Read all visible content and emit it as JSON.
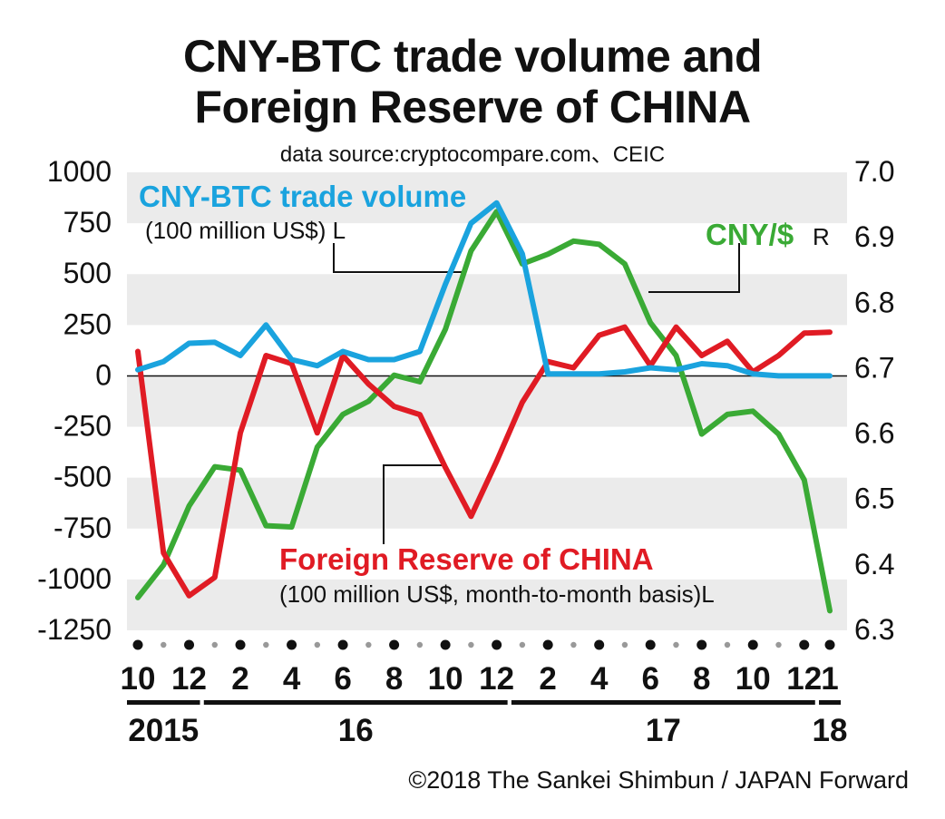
{
  "title_line1": "CNY-BTC trade volume and",
  "title_line2": "Foreign Reserve of CHINA",
  "source": "data source:cryptocompare.com、CEIC",
  "copyright": "©2018 The Sankei Shimbun / JAPAN Forward",
  "colors": {
    "btc": "#1aa3de",
    "reserve": "#e01b24",
    "cny": "#3aaa35",
    "band": "#ebebeb",
    "text": "#111111"
  },
  "chart_data": {
    "type": "line",
    "x": [
      "2015-10",
      "2015-11",
      "2015-12",
      "2016-01",
      "2016-02",
      "2016-03",
      "2016-04",
      "2016-05",
      "2016-06",
      "2016-07",
      "2016-08",
      "2016-09",
      "2016-10",
      "2016-11",
      "2016-12",
      "2017-01",
      "2017-02",
      "2017-03",
      "2017-04",
      "2017-05",
      "2017-06",
      "2017-07",
      "2017-08",
      "2017-09",
      "2017-10",
      "2017-11",
      "2017-12",
      "2018-01"
    ],
    "x_tick_labels": [
      "10",
      "12",
      "2",
      "4",
      "6",
      "8",
      "10",
      "12",
      "2",
      "4",
      "6",
      "8",
      "10",
      "12",
      "1"
    ],
    "x_tick_months": [
      "2015-10",
      "2015-12",
      "2016-02",
      "2016-04",
      "2016-06",
      "2016-08",
      "2016-10",
      "2016-12",
      "2017-02",
      "2017-04",
      "2017-06",
      "2017-08",
      "2017-10",
      "2017-12",
      "2018-01"
    ],
    "year_labels": [
      {
        "label": "2015",
        "start": "2015-10",
        "end": "2015-12"
      },
      {
        "label": "16",
        "start": "2016-01",
        "end": "2016-12"
      },
      {
        "label": "17",
        "start": "2017-01",
        "end": "2017-12"
      },
      {
        "label": "18",
        "start": "2018-01",
        "end": "2018-01"
      }
    ],
    "y_left": {
      "range": [
        -1250,
        1000
      ],
      "ticks": [
        1000,
        750,
        500,
        250,
        0,
        -250,
        -500,
        -750,
        -1000,
        -1250
      ]
    },
    "y_right": {
      "range": [
        6.3,
        7.0
      ],
      "ticks": [
        "7.0",
        "6.9",
        "6.8",
        "6.7",
        "6.6",
        "6.5",
        "6.4",
        "6.3"
      ],
      "tick_values": [
        7.0,
        6.9,
        6.8,
        6.7,
        6.6,
        6.5,
        6.4,
        6.3
      ]
    },
    "series": [
      {
        "key": "btc",
        "name": "CNY-BTC trade volume",
        "unit": "(100 million US$) L",
        "axis": "left",
        "values": [
          30,
          70,
          160,
          165,
          100,
          250,
          80,
          50,
          120,
          80,
          80,
          120,
          450,
          750,
          850,
          600,
          10,
          10,
          10,
          20,
          40,
          30,
          60,
          50,
          10,
          0,
          0,
          0
        ]
      },
      {
        "key": "reserve",
        "name": "Foreign Reserve of CHINA",
        "unit": "(100 million US$, month-to-month basis)L",
        "axis": "left",
        "values": [
          120,
          -870,
          -1080,
          -990,
          -280,
          100,
          60,
          -280,
          100,
          -40,
          -150,
          -190,
          -450,
          -690,
          -420,
          -130,
          70,
          40,
          200,
          240,
          50,
          240,
          100,
          170,
          20,
          100,
          210,
          215
        ]
      },
      {
        "key": "cny",
        "name": "CNY/$",
        "unit": "R",
        "axis": "right",
        "values": [
          6.35,
          6.4,
          6.49,
          6.55,
          6.545,
          6.46,
          6.458,
          6.58,
          6.63,
          6.65,
          6.69,
          6.68,
          6.76,
          6.88,
          6.94,
          6.86,
          6.875,
          6.895,
          6.89,
          6.86,
          6.77,
          6.72,
          6.6,
          6.63,
          6.635,
          6.6,
          6.53,
          6.33
        ]
      }
    ],
    "grid": "alternating horizontal bands",
    "legend": "inline labels with leader lines"
  }
}
